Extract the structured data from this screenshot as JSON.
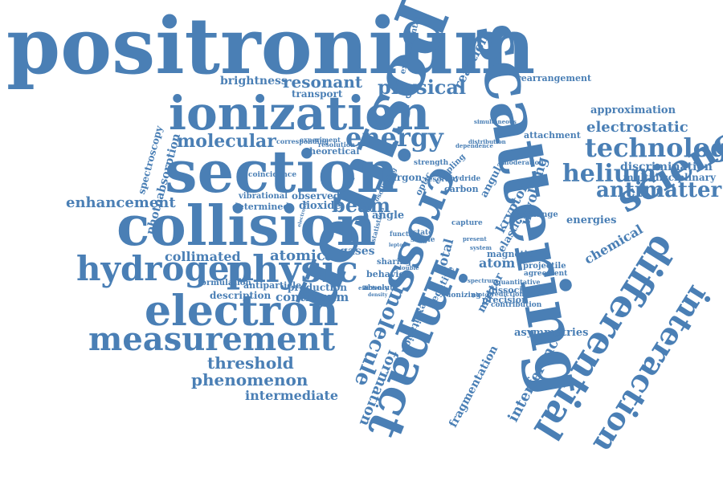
{
  "color": "#4a7fb5",
  "words": [
    "positronium",
    "scattering",
    "positron",
    "section",
    "collision",
    "ionization",
    "electron",
    "hydrogen",
    "physic",
    "measurement",
    "cross",
    "impact",
    "science",
    "differential",
    "interaction",
    "technology",
    "antimatter",
    "helium",
    "molecule",
    "energy",
    "molecular",
    "enhancement",
    "threshold",
    "phenomenon",
    "intermediate",
    "electrostatic",
    "approximation",
    "discrimination",
    "multidisciplinary",
    "energies",
    "chemical",
    "asymmetries",
    "brightness",
    "resonant",
    "physical",
    "transport",
    "rearrangement",
    "reaction",
    "attachment",
    "atomic",
    "collimated",
    "gases",
    "continuum",
    "production",
    "description",
    "antiparticle",
    "formulation",
    "beam",
    "dioxide",
    "observed",
    "determined",
    "vibrational",
    "atom",
    "formation",
    "excitation",
    "krypton",
    "involving",
    "interference",
    "fragmentation",
    "angle",
    "carbon",
    "argon",
    "optic",
    "total",
    "magnetic",
    "projectile",
    "agreement",
    "dissociative",
    "precision",
    "contribution",
    "matter",
    "exchange",
    "elastic",
    "angular",
    "photoabsorption",
    "spectroscopy",
    "theoretical",
    "experimental",
    "strength",
    "coincidence",
    "negative",
    "ionizing",
    "behavior",
    "sharing",
    "single",
    "state",
    "capture",
    "coupling",
    "hydride",
    "resolved",
    "moderation",
    "dependence",
    "simultaneous",
    "distribution",
    "spectrum",
    "quantitative",
    "prediction",
    "absolute",
    "efficiency",
    "corresponding",
    "experiment",
    "resolution",
    "function",
    "double",
    "present",
    "system",
    "statistical",
    "oscillating",
    "photon",
    "electronic",
    "density",
    "lepton"
  ]
}
